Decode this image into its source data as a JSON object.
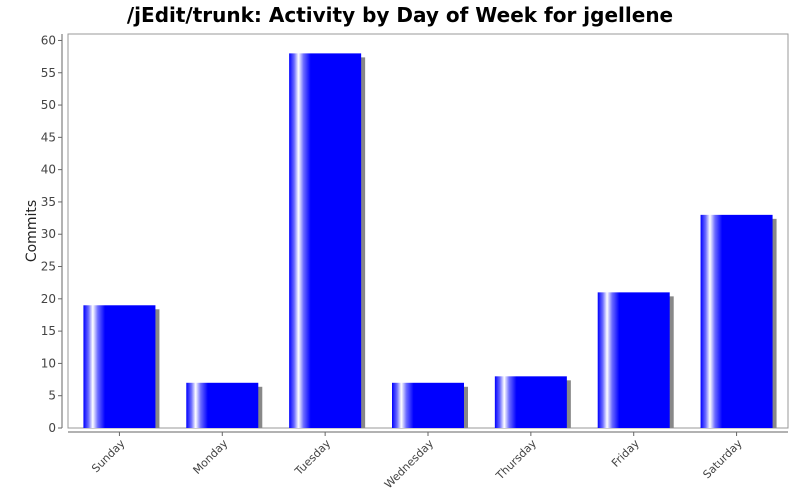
{
  "chart_data": {
    "type": "bar",
    "title": "/jEdit/trunk: Activity by Day of Week for jgellene",
    "xlabel": "",
    "ylabel": "Commits",
    "categories": [
      "Sunday",
      "Monday",
      "Tuesday",
      "Wednesday",
      "Thursday",
      "Friday",
      "Saturday"
    ],
    "values": [
      19,
      7,
      58,
      7,
      8,
      21,
      33
    ],
    "ylim": [
      0,
      61
    ],
    "yticks": [
      0,
      5,
      10,
      15,
      20,
      25,
      30,
      35,
      40,
      45,
      50,
      55,
      60
    ],
    "grid": false,
    "legend": "none",
    "bar_color": "#0000ff",
    "shadow_color": "#888888"
  }
}
